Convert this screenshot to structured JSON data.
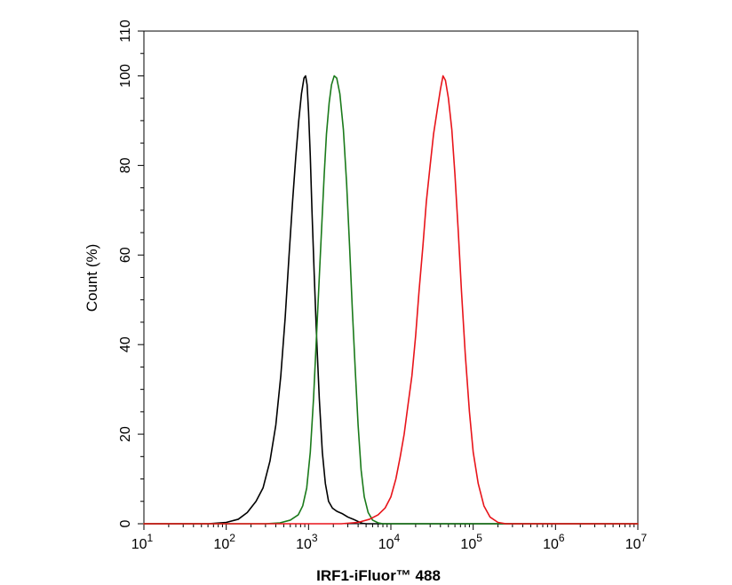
{
  "chart_data": {
    "type": "line",
    "xlabel": "IRF1-iFluor™ 488",
    "ylabel": "Count  (%)",
    "x_scale": "log",
    "xlim": [
      10,
      10000000
    ],
    "ylim": [
      0,
      110
    ],
    "x_ticks": [
      {
        "value": 10,
        "base": "10",
        "exp": "1"
      },
      {
        "value": 100,
        "base": "10",
        "exp": "2"
      },
      {
        "value": 1000,
        "base": "10",
        "exp": "3"
      },
      {
        "value": 10000,
        "base": "10",
        "exp": "4"
      },
      {
        "value": 100000,
        "base": "10",
        "exp": "5"
      },
      {
        "value": 1000000,
        "base": "10",
        "exp": "6"
      },
      {
        "value": 10000000,
        "base": "10",
        "exp": "7"
      }
    ],
    "y_ticks": [
      {
        "value": 0,
        "label": "0"
      },
      {
        "value": 20,
        "label": "20"
      },
      {
        "value": 40,
        "label": "40"
      },
      {
        "value": 60,
        "label": "60"
      },
      {
        "value": 80,
        "label": "80"
      },
      {
        "value": 100,
        "label": "100"
      },
      {
        "value": 110,
        "label": "110"
      }
    ],
    "grid": false,
    "series": [
      {
        "color": "#000000",
        "points": [
          [
            10,
            0
          ],
          [
            60,
            0
          ],
          [
            100,
            0.3
          ],
          [
            140,
            1
          ],
          [
            180,
            2.5
          ],
          [
            230,
            5
          ],
          [
            280,
            8
          ],
          [
            340,
            14
          ],
          [
            400,
            22
          ],
          [
            460,
            33
          ],
          [
            520,
            46
          ],
          [
            580,
            60
          ],
          [
            640,
            72
          ],
          [
            700,
            82
          ],
          [
            760,
            90
          ],
          [
            820,
            96
          ],
          [
            880,
            99.5
          ],
          [
            920,
            100
          ],
          [
            960,
            98
          ],
          [
            1000,
            92
          ],
          [
            1050,
            82
          ],
          [
            1100,
            70
          ],
          [
            1170,
            56
          ],
          [
            1250,
            42
          ],
          [
            1350,
            28
          ],
          [
            1470,
            16
          ],
          [
            1600,
            9
          ],
          [
            1750,
            5
          ],
          [
            1950,
            3.5
          ],
          [
            2200,
            2.8
          ],
          [
            2600,
            2.2
          ],
          [
            3000,
            1.5
          ],
          [
            3500,
            1
          ],
          [
            4000,
            0.5
          ],
          [
            4500,
            0.1
          ],
          [
            5000,
            0
          ],
          [
            10000000,
            0
          ]
        ]
      },
      {
        "color": "#1a7a1a",
        "points": [
          [
            10,
            0
          ],
          [
            300,
            0
          ],
          [
            450,
            0.2
          ],
          [
            600,
            0.8
          ],
          [
            750,
            2
          ],
          [
            850,
            4
          ],
          [
            950,
            8
          ],
          [
            1050,
            16
          ],
          [
            1150,
            28
          ],
          [
            1250,
            42
          ],
          [
            1350,
            55
          ],
          [
            1450,
            67
          ],
          [
            1550,
            78
          ],
          [
            1650,
            87
          ],
          [
            1780,
            94
          ],
          [
            1900,
            98
          ],
          [
            2050,
            100
          ],
          [
            2200,
            99.5
          ],
          [
            2400,
            96
          ],
          [
            2650,
            88
          ],
          [
            2900,
            76
          ],
          [
            3150,
            62
          ],
          [
            3400,
            48
          ],
          [
            3700,
            34
          ],
          [
            4000,
            22
          ],
          [
            4350,
            12
          ],
          [
            4750,
            6
          ],
          [
            5300,
            2.5
          ],
          [
            6000,
            0.8
          ],
          [
            7000,
            0.2
          ],
          [
            8000,
            0
          ],
          [
            10000000,
            0
          ]
        ]
      },
      {
        "color": "#e8141a",
        "points": [
          [
            10,
            0
          ],
          [
            2500,
            0
          ],
          [
            4000,
            0.3
          ],
          [
            5500,
            1
          ],
          [
            7000,
            2
          ],
          [
            8500,
            3.5
          ],
          [
            10000,
            6
          ],
          [
            11500,
            10
          ],
          [
            13000,
            15
          ],
          [
            14500,
            20
          ],
          [
            16000,
            26
          ],
          [
            18000,
            33
          ],
          [
            20000,
            42
          ],
          [
            22000,
            52
          ],
          [
            24500,
            62
          ],
          [
            27000,
            72
          ],
          [
            30000,
            80
          ],
          [
            33000,
            87
          ],
          [
            37000,
            93
          ],
          [
            40000,
            97
          ],
          [
            43000,
            100
          ],
          [
            46000,
            99
          ],
          [
            50000,
            95
          ],
          [
            55000,
            88
          ],
          [
            60000,
            78
          ],
          [
            66000,
            65
          ],
          [
            72000,
            52
          ],
          [
            80000,
            38
          ],
          [
            90000,
            25
          ],
          [
            100000,
            16
          ],
          [
            115000,
            9
          ],
          [
            135000,
            4
          ],
          [
            160000,
            1.5
          ],
          [
            200000,
            0.3
          ],
          [
            250000,
            0
          ],
          [
            10000000,
            0
          ]
        ]
      }
    ]
  }
}
